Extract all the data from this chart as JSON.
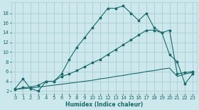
{
  "xlabel": "Humidex (Indice chaleur)",
  "bg_color": "#cce8ec",
  "grid_color": "#aacdd5",
  "line_color": "#1a6b6b",
  "line1_x": [
    0,
    1,
    2,
    3,
    4,
    5,
    6,
    7,
    8,
    9,
    10,
    11,
    12,
    13,
    14,
    15,
    16,
    17,
    18,
    19,
    20,
    21,
    22,
    23
  ],
  "line1_y": [
    2.5,
    4.5,
    2.5,
    2.0,
    4.0,
    4.0,
    5.5,
    8.5,
    11.0,
    13.0,
    15.0,
    17.0,
    19.0,
    19.0,
    19.5,
    18.0,
    16.5,
    18.0,
    15.0,
    14.0,
    9.5,
    8.0,
    3.5,
    5.5
  ],
  "line2_x": [
    0,
    1,
    2,
    3,
    4,
    5,
    6,
    7,
    8,
    9,
    10,
    11,
    12,
    13,
    14,
    15,
    16,
    17,
    18,
    19,
    20,
    21,
    22,
    23
  ],
  "line2_y": [
    2.3,
    2.7,
    2.8,
    3.2,
    4.0,
    4.0,
    5.0,
    5.5,
    6.2,
    7.0,
    7.8,
    8.5,
    9.5,
    10.5,
    11.5,
    12.5,
    13.5,
    14.5,
    14.5,
    14.0,
    14.5,
    5.5,
    5.8,
    6.0
  ],
  "line3_x": [
    0,
    1,
    2,
    3,
    4,
    5,
    6,
    7,
    8,
    9,
    10,
    11,
    12,
    13,
    14,
    15,
    16,
    17,
    18,
    19,
    20,
    21,
    22,
    23
  ],
  "line3_y": [
    2.3,
    2.5,
    2.6,
    2.8,
    3.0,
    3.2,
    3.4,
    3.6,
    3.8,
    4.0,
    4.2,
    4.5,
    4.7,
    5.0,
    5.2,
    5.5,
    5.7,
    6.0,
    6.2,
    6.5,
    6.7,
    5.0,
    5.5,
    5.8
  ],
  "xlim": [
    -0.5,
    23.5
  ],
  "ylim": [
    1.5,
    20.2
  ],
  "yticks": [
    2,
    4,
    6,
    8,
    10,
    12,
    14,
    16,
    18
  ],
  "xticks": [
    0,
    1,
    2,
    3,
    4,
    5,
    6,
    7,
    8,
    9,
    10,
    11,
    12,
    13,
    14,
    15,
    16,
    17,
    18,
    19,
    20,
    21,
    22,
    23
  ]
}
